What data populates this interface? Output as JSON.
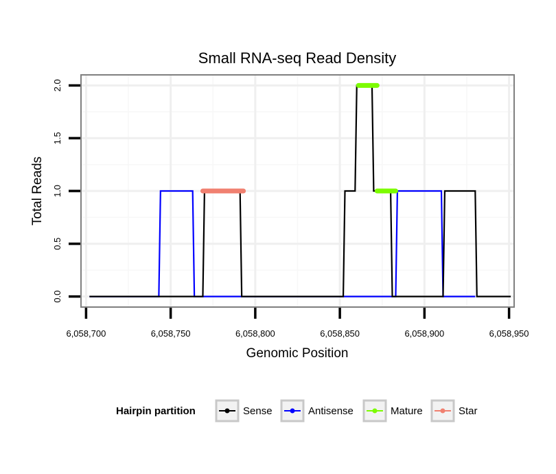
{
  "chart_data": {
    "type": "line",
    "title": "Small RNA-seq Read Density",
    "xlabel": "Genomic Position",
    "ylabel": "Total Reads",
    "xlim": [
      6058697,
      6058953
    ],
    "ylim": [
      -0.1,
      2.1
    ],
    "x_ticks": [
      6058700,
      6058750,
      6058800,
      6058850,
      6058900,
      6058950
    ],
    "x_tick_labels": [
      "6,058,700",
      "6,058,750",
      "6,058,800",
      "6,058,850",
      "6,058,900",
      "6,058,950"
    ],
    "y_ticks": [
      0.0,
      0.5,
      1.0,
      1.5,
      2.0
    ],
    "y_tick_labels": [
      "0.0",
      "0.5",
      "1.0",
      "1.5",
      "2.0"
    ],
    "grid": true,
    "legend": {
      "title": "Hairpin partition",
      "placement": "bottom",
      "items": [
        {
          "name": "Sense",
          "color": "#000000"
        },
        {
          "name": "Antisense",
          "color": "#0000ff"
        },
        {
          "name": "Mature",
          "color": "#7cfc00"
        },
        {
          "name": "Star",
          "color": "#f08070"
        }
      ]
    },
    "series": [
      {
        "name": "Sense",
        "color": "#000000",
        "points": [
          [
            6058702,
            0
          ],
          [
            6058769,
            0
          ],
          [
            6058770,
            1
          ],
          [
            6058791,
            1
          ],
          [
            6058792,
            0
          ],
          [
            6058852,
            0
          ],
          [
            6058853,
            1
          ],
          [
            6058859,
            1
          ],
          [
            6058860,
            2
          ],
          [
            6058869,
            2
          ],
          [
            6058870,
            1
          ],
          [
            6058880,
            1
          ],
          [
            6058881,
            0
          ],
          [
            6058911,
            0
          ],
          [
            6058912,
            1
          ],
          [
            6058930,
            1
          ],
          [
            6058931,
            0
          ],
          [
            6058951,
            0
          ]
        ]
      },
      {
        "name": "Antisense",
        "color": "#0000ff",
        "points": [
          [
            6058702,
            0
          ],
          [
            6058743,
            0
          ],
          [
            6058744,
            1
          ],
          [
            6058763,
            1
          ],
          [
            6058764,
            0
          ],
          [
            6058883,
            0
          ],
          [
            6058884,
            1
          ],
          [
            6058910,
            1
          ],
          [
            6058911,
            0
          ],
          [
            6058930,
            0
          ]
        ]
      },
      {
        "name": "Mature",
        "color": "#7cfc00",
        "segments": [
          [
            6058861,
            6058872,
            2.0
          ],
          [
            6058872,
            6058883,
            1.0
          ]
        ]
      },
      {
        "name": "Star",
        "color": "#f08070",
        "segments": [
          [
            6058769,
            6058793,
            1.0
          ]
        ]
      }
    ]
  }
}
